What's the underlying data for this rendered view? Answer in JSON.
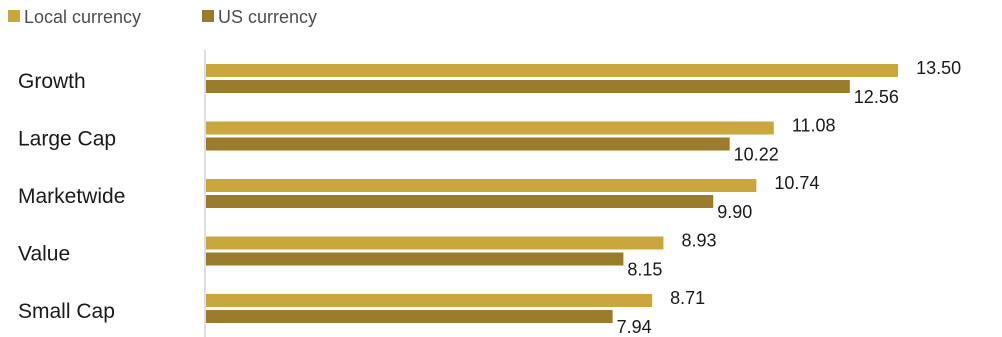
{
  "chart_data": {
    "type": "bar",
    "orientation": "horizontal",
    "categories": [
      "Growth",
      "Large Cap",
      "Marketwide",
      "Value",
      "Small Cap"
    ],
    "series": [
      {
        "name": "Local currency",
        "color": "#c9a73e",
        "values": [
          13.5,
          11.08,
          10.74,
          8.93,
          8.71
        ]
      },
      {
        "name": "US currency",
        "color": "#9a7b2c",
        "values": [
          12.56,
          10.22,
          9.9,
          8.15,
          7.94
        ]
      }
    ],
    "value_labels": [
      [
        "13.50",
        "11.08",
        "10.74",
        "8.93",
        "8.71"
      ],
      [
        "12.56",
        "10.22",
        "9.90",
        "8.15",
        "7.94"
      ]
    ],
    "xlim": [
      0,
      14.2
    ],
    "grid": false,
    "legend_position": "top-left",
    "axis_color": "#bfbfbf"
  }
}
